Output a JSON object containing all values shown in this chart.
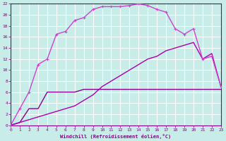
{
  "xlabel": "Windchill (Refroidissement éolien,°C)",
  "bg_color": "#c8ece8",
  "grid_color": "#ffffff",
  "line_flat_color": "#880088",
  "line_diag_color": "#aa00aa",
  "line_curve_color": "#cc44cc",
  "xlim": [
    0,
    23
  ],
  "ylim": [
    0,
    22
  ],
  "xticks": [
    0,
    1,
    2,
    3,
    4,
    5,
    6,
    7,
    8,
    9,
    10,
    11,
    12,
    13,
    14,
    15,
    16,
    17,
    18,
    19,
    20,
    21,
    22,
    23
  ],
  "yticks": [
    0,
    2,
    4,
    6,
    8,
    10,
    12,
    14,
    16,
    18,
    20,
    22
  ],
  "line_flat_x": [
    0,
    1,
    2,
    3,
    4,
    5,
    6,
    7,
    8,
    9,
    10,
    11,
    12,
    13,
    14,
    15,
    16,
    17,
    18,
    19,
    20,
    21,
    22,
    23
  ],
  "line_flat_y": [
    0,
    0.5,
    3,
    3,
    6,
    6,
    6,
    6,
    6.5,
    6.5,
    6.5,
    6.5,
    6.5,
    6.5,
    6.5,
    6.5,
    6.5,
    6.5,
    6.5,
    6.5,
    6.5,
    6.5,
    6.5,
    6.5
  ],
  "line_diag_x": [
    0,
    1,
    2,
    3,
    4,
    5,
    6,
    7,
    8,
    9,
    10,
    11,
    12,
    13,
    14,
    15,
    16,
    17,
    18,
    19,
    20,
    21,
    22,
    23
  ],
  "line_diag_y": [
    0,
    0.5,
    1,
    1.5,
    2,
    2.5,
    3,
    3.5,
    4.5,
    5.5,
    7,
    8,
    9,
    10,
    11,
    12,
    12.5,
    13.5,
    14,
    14.5,
    15,
    12,
    13,
    7
  ],
  "line_curve_x": [
    0,
    1,
    2,
    3,
    4,
    5,
    6,
    7,
    8,
    9,
    10,
    11,
    12,
    13,
    14,
    15,
    16,
    17,
    18,
    19,
    20,
    21,
    22,
    23
  ],
  "line_curve_y": [
    0,
    3,
    6,
    11,
    12,
    16.5,
    17,
    19,
    19.5,
    21,
    21.5,
    21.5,
    21.5,
    21.7,
    22,
    21.7,
    21,
    20.5,
    17.5,
    16.5,
    17.5,
    12,
    12.5,
    7
  ]
}
